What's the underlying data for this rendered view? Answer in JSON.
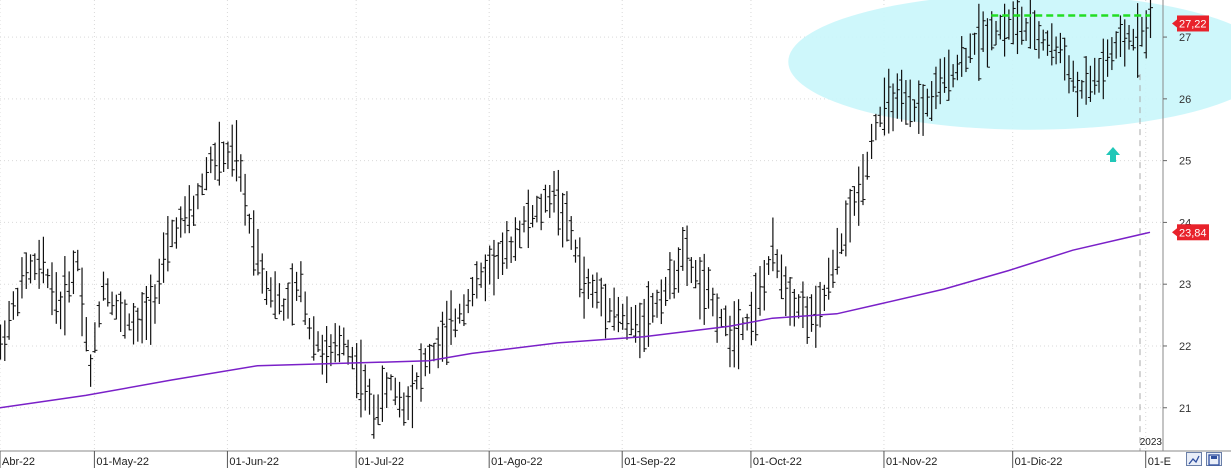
{
  "chart_data": {
    "type": "ohlc",
    "y_axis_position": "right",
    "ylim": [
      20.3,
      27.6
    ],
    "y_ticks": [
      "21",
      "22",
      "23",
      "24",
      "25",
      "26",
      "27"
    ],
    "x_ticks": [
      {
        "label": "Abr-22",
        "x": 0
      },
      {
        "label": "01-May-22",
        "x": 22
      },
      {
        "label": "01-Jun-22",
        "x": 53
      },
      {
        "label": "01-Jul-22",
        "x": 83
      },
      {
        "label": "01-Ago-22",
        "x": 114
      },
      {
        "label": "01-Sep-22",
        "x": 145
      },
      {
        "label": "01-Oct-22",
        "x": 175
      },
      {
        "label": "01-Nov-22",
        "x": 206
      },
      {
        "label": "01-Dic-22",
        "x": 236
      },
      {
        "label": "01-E",
        "x": 267
      }
    ],
    "year_label": "2023",
    "last_price_label": "27,22",
    "last_price": 27.22,
    "ma_price_label": "23,84",
    "ma_price": 23.84,
    "price_path": [
      [
        0,
        22.0
      ],
      [
        6,
        23.2
      ],
      [
        10,
        23.3
      ],
      [
        14,
        22.6
      ],
      [
        18,
        23.4
      ],
      [
        21,
        21.6
      ],
      [
        24,
        23.0
      ],
      [
        28,
        22.5
      ],
      [
        32,
        22.3
      ],
      [
        36,
        22.8
      ],
      [
        40,
        23.8
      ],
      [
        45,
        24.2
      ],
      [
        49,
        25.0
      ],
      [
        55,
        25.1
      ],
      [
        58,
        24.0
      ],
      [
        62,
        23.0
      ],
      [
        66,
        22.6
      ],
      [
        70,
        23.0
      ],
      [
        72,
        22.3
      ],
      [
        76,
        21.8
      ],
      [
        80,
        22.1
      ],
      [
        84,
        21.5
      ],
      [
        87,
        20.9
      ],
      [
        91,
        21.4
      ],
      [
        94,
        21.0
      ],
      [
        98,
        21.6
      ],
      [
        102,
        22.0
      ],
      [
        106,
        22.4
      ],
      [
        110,
        22.9
      ],
      [
        114,
        23.3
      ],
      [
        118,
        23.5
      ],
      [
        122,
        24.0
      ],
      [
        126,
        24.2
      ],
      [
        129,
        24.5
      ],
      [
        133,
        23.8
      ],
      [
        136,
        23.0
      ],
      [
        140,
        22.8
      ],
      [
        144,
        22.5
      ],
      [
        148,
        22.3
      ],
      [
        152,
        22.6
      ],
      [
        156,
        23.0
      ],
      [
        159,
        23.5
      ],
      [
        163,
        23.0
      ],
      [
        166,
        22.7
      ],
      [
        170,
        22.2
      ],
      [
        174,
        22.4
      ],
      [
        177,
        22.8
      ],
      [
        180,
        23.5
      ],
      [
        184,
        22.8
      ],
      [
        187,
        22.6
      ],
      [
        190,
        22.4
      ],
      [
        194,
        23.2
      ],
      [
        197,
        23.9
      ],
      [
        201,
        24.7
      ],
      [
        204,
        25.6
      ],
      [
        208,
        26.0
      ],
      [
        212,
        25.8
      ],
      [
        216,
        25.9
      ],
      [
        220,
        26.3
      ],
      [
        224,
        26.6
      ],
      [
        227,
        26.9
      ],
      [
        231,
        27.1
      ],
      [
        236,
        27.2
      ],
      [
        240,
        27.1
      ],
      [
        244,
        26.9
      ],
      [
        248,
        26.7
      ],
      [
        251,
        26.1
      ],
      [
        255,
        26.3
      ],
      [
        258,
        26.6
      ],
      [
        261,
        26.9
      ],
      [
        265,
        27.0
      ],
      [
        268,
        27.25
      ]
    ],
    "ma_path": [
      [
        0,
        21.0
      ],
      [
        20,
        21.2
      ],
      [
        40,
        21.45
      ],
      [
        60,
        21.68
      ],
      [
        80,
        21.72
      ],
      [
        100,
        21.76
      ],
      [
        110,
        21.88
      ],
      [
        130,
        22.05
      ],
      [
        150,
        22.15
      ],
      [
        170,
        22.32
      ],
      [
        180,
        22.45
      ],
      [
        195,
        22.52
      ],
      [
        205,
        22.68
      ],
      [
        220,
        22.92
      ],
      [
        235,
        23.22
      ],
      [
        250,
        23.55
      ],
      [
        268,
        23.84
      ]
    ],
    "resistance_level": 27.35,
    "resistance_from_x": 231,
    "resistance_to_x": 268
  }
}
